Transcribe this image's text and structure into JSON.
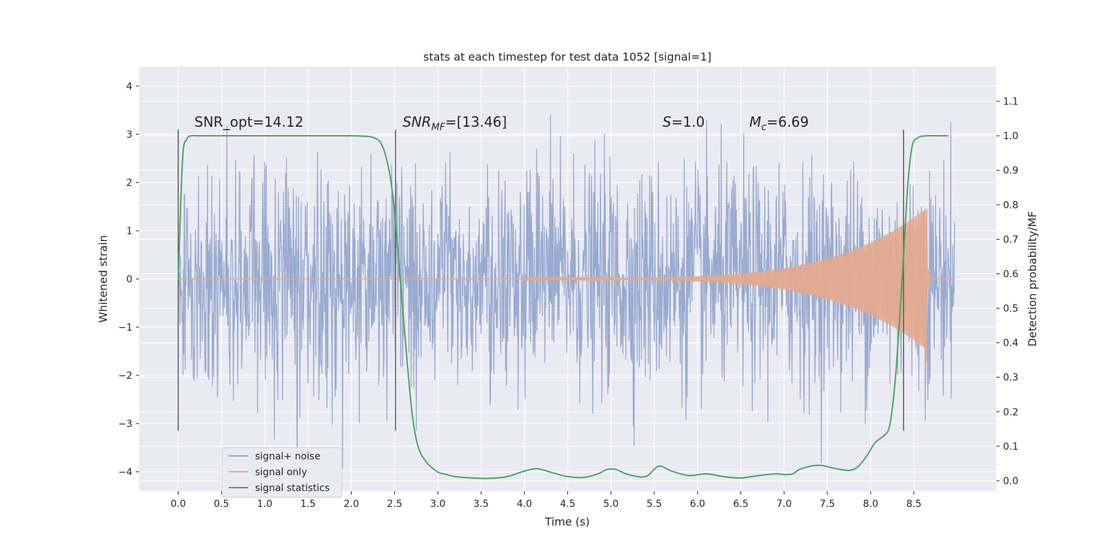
{
  "chart_data": {
    "type": "line",
    "title": "stats at each timestep for test data 1052 [signal=1]",
    "xlabel": "Time (s)",
    "ylabel": "Whitened strain",
    "ylabel_right": "Detection probability/MF",
    "xlim": [
      -0.45,
      9.45
    ],
    "ylim": [
      -4.4,
      4.4
    ],
    "ylim_right": [
      -0.03,
      1.2
    ],
    "xticks": [
      "0.0",
      "0.5",
      "1.0",
      "1.5",
      "2.0",
      "2.5",
      "3.0",
      "3.5",
      "4.0",
      "4.5",
      "5.0",
      "5.5",
      "6.0",
      "6.5",
      "7.0",
      "7.5",
      "8.0",
      "8.5"
    ],
    "yticks": [
      "4",
      "3",
      "2",
      "1",
      "0",
      "−1",
      "−2",
      "−3",
      "−4"
    ],
    "yticks_right": [
      "1.1",
      "1.0",
      "0.9",
      "0.8",
      "0.7",
      "0.6",
      "0.5",
      "0.4",
      "0.3",
      "0.2",
      "0.1",
      "0.0"
    ],
    "grid": true,
    "legend_position": "lower-left",
    "annotations": {
      "snr_opt": "SNR_opt=14.12",
      "snr_mf_prefix": "SNR",
      "snr_mf_sub": "MF",
      "snr_mf_value": "=[13.46]",
      "s_symbol": "S",
      "s_value": "=1.0",
      "mc_symbol": "M",
      "mc_sub": "c",
      "mc_value": "=6.69"
    },
    "vertical_markers": {
      "x": [
        0.0,
        2.51,
        8.38
      ],
      "y_range": [
        -3.15,
        3.1
      ]
    },
    "series": [
      {
        "name": "signal+ noise",
        "color": "#8fa3cc",
        "description_values": {
          "x_range": [
            0.0,
            8.97
          ],
          "noise_std": 1.0,
          "y_extremes": [
            -4.0,
            3.97
          ]
        }
      },
      {
        "name": "signal only",
        "color": "#e4a98d",
        "chirp": {
          "start": 4.0,
          "merger": 8.65,
          "end": 8.97,
          "peak_amplitude": 1.45,
          "peak_min": -1.7
        }
      },
      {
        "name": "signal statistics",
        "color": "#4aa55b",
        "x": [
          0.0,
          0.05,
          0.1,
          0.15,
          0.2,
          0.3,
          0.5,
          1.0,
          1.5,
          2.0,
          2.2,
          2.3,
          2.35,
          2.4,
          2.45,
          2.5,
          2.55,
          2.6,
          2.65,
          2.7,
          2.75,
          2.8,
          2.85,
          2.9,
          3.0,
          3.1,
          3.2,
          3.4,
          3.6,
          3.8,
          4.0,
          4.15,
          4.3,
          4.5,
          4.7,
          4.85,
          4.95,
          5.05,
          5.2,
          5.4,
          5.55,
          5.7,
          5.9,
          6.1,
          6.3,
          6.5,
          6.7,
          6.9,
          7.0,
          7.1,
          7.2,
          7.4,
          7.6,
          7.75,
          7.85,
          7.95,
          8.05,
          8.15,
          8.22,
          8.28,
          8.33,
          8.38,
          8.43,
          8.48,
          8.55,
          8.65,
          8.8,
          8.9
        ],
        "values": [
          0.58,
          0.93,
          0.99,
          1.0,
          1.0,
          1.0,
          1.0,
          1.0,
          1.0,
          1.0,
          0.998,
          0.99,
          0.975,
          0.94,
          0.88,
          0.78,
          0.63,
          0.48,
          0.33,
          0.2,
          0.12,
          0.08,
          0.06,
          0.045,
          0.025,
          0.018,
          0.012,
          0.008,
          0.007,
          0.012,
          0.028,
          0.035,
          0.025,
          0.012,
          0.01,
          0.02,
          0.032,
          0.033,
          0.018,
          0.012,
          0.042,
          0.028,
          0.015,
          0.02,
          0.012,
          0.008,
          0.015,
          0.02,
          0.018,
          0.02,
          0.035,
          0.045,
          0.035,
          0.03,
          0.04,
          0.07,
          0.11,
          0.13,
          0.16,
          0.28,
          0.45,
          0.65,
          0.86,
          0.97,
          0.995,
          1.0,
          1.0,
          1.0
        ]
      }
    ]
  }
}
